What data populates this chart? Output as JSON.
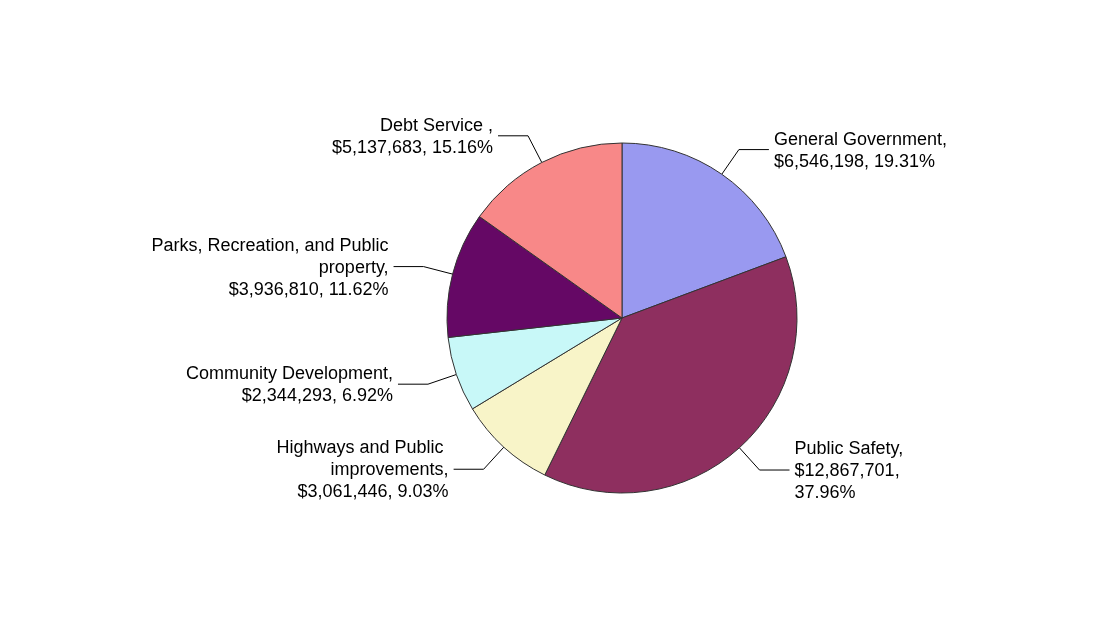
{
  "chart_data": {
    "type": "pie",
    "categories": [
      "General Government",
      "Public Safety",
      "Highways and Public improvements",
      "Community Development",
      "Parks, Recreation, and Public property",
      "Debt Service "
    ],
    "values": [
      6546198,
      12867701,
      3061446,
      2344293,
      3936810,
      5137683
    ],
    "value_labels": [
      ", $6,546,198, 19.31%",
      ", $12,867,701, 37.96%",
      ", $3,061,446, 9.03%",
      ", $2,344,293, 6.92%",
      ", $3,936,810, 11.62%",
      ", $5,137,683, 15.16%"
    ],
    "colors": [
      "#9999f0",
      "#8e2f5f",
      "#f8f4c8",
      "#c8f8f8",
      "#650865",
      "#f88888"
    ],
    "legend": false
  }
}
